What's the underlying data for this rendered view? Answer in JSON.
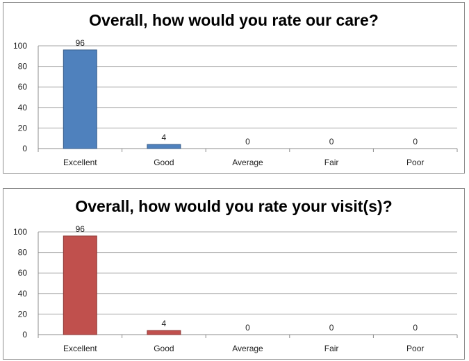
{
  "chart_data": [
    {
      "type": "bar",
      "title": "Overall, how would you rate our care?",
      "categories": [
        "Excellent",
        "Good",
        "Average",
        "Fair",
        "Poor"
      ],
      "values": [
        96,
        4,
        0,
        0,
        0
      ],
      "data_labels": [
        "96",
        "4",
        "0",
        "0",
        "0"
      ],
      "yticks": [
        "0",
        "20",
        "40",
        "60",
        "80",
        "100"
      ],
      "ylim": [
        0,
        100
      ],
      "grid": true,
      "color": "#4f81bd",
      "border_color": "#385d8a"
    },
    {
      "type": "bar",
      "title": "Overall, how would you rate your visit(s)?",
      "categories": [
        "Excellent",
        "Good",
        "Average",
        "Fair",
        "Poor"
      ],
      "values": [
        96,
        4,
        0,
        0,
        0
      ],
      "data_labels": [
        "96",
        "4",
        "0",
        "0",
        "0"
      ],
      "yticks": [
        "0",
        "20",
        "40",
        "60",
        "80",
        "100"
      ],
      "ylim": [
        0,
        100
      ],
      "grid": true,
      "color": "#c0504d",
      "border_color": "#8c3836"
    }
  ]
}
